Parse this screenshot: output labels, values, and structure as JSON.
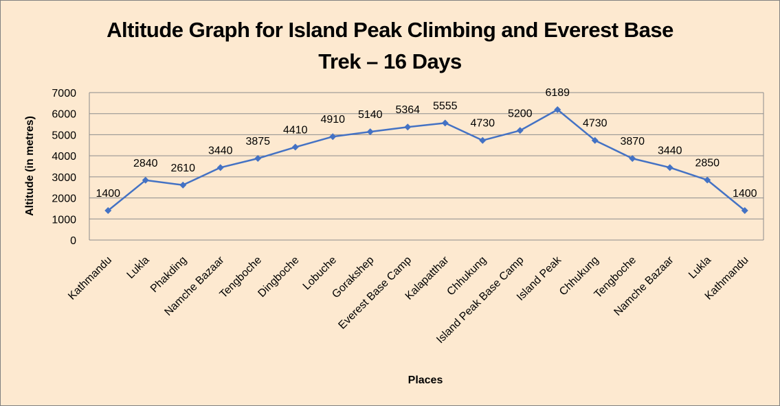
{
  "chart_data": {
    "type": "line",
    "title": "Altitude Graph for Island Peak Climbing and Everest Base Trek – 16 Days",
    "title_lines": [
      "Altitude Graph for Island Peak Climbing and Everest Base",
      "Trek – 16 Days"
    ],
    "xlabel": "Places",
    "ylabel": "Altitude (in metres)",
    "ylim": [
      0,
      7000
    ],
    "yticks": [
      0,
      1000,
      2000,
      3000,
      4000,
      5000,
      6000,
      7000
    ],
    "grid": true,
    "legend": "none",
    "categories": [
      "Kathmandu",
      "Lukla",
      "Phakding",
      "Namche Bazaar",
      "Tengboche",
      "Dingboche",
      "Lobuche",
      "Gorakshep",
      "Everest Base Camp",
      "Kalapatthar",
      "Chhukung",
      "Island Peak Base Camp",
      "Island Peak",
      "Chhukung",
      "Tengboche",
      "Namche Bazaar",
      "Lukla",
      "Kathmandu"
    ],
    "series": [
      {
        "name": "Altitude",
        "color": "#4472c4",
        "marker": "diamond",
        "values": [
          1400,
          2840,
          2610,
          3440,
          3875,
          4410,
          4910,
          5140,
          5364,
          5555,
          4730,
          5200,
          6189,
          4730,
          3870,
          3440,
          2850,
          1400
        ]
      }
    ]
  },
  "colors": {
    "background": "#fde9d0",
    "gridline": "#8c8c8c",
    "line": "#4472c4"
  }
}
